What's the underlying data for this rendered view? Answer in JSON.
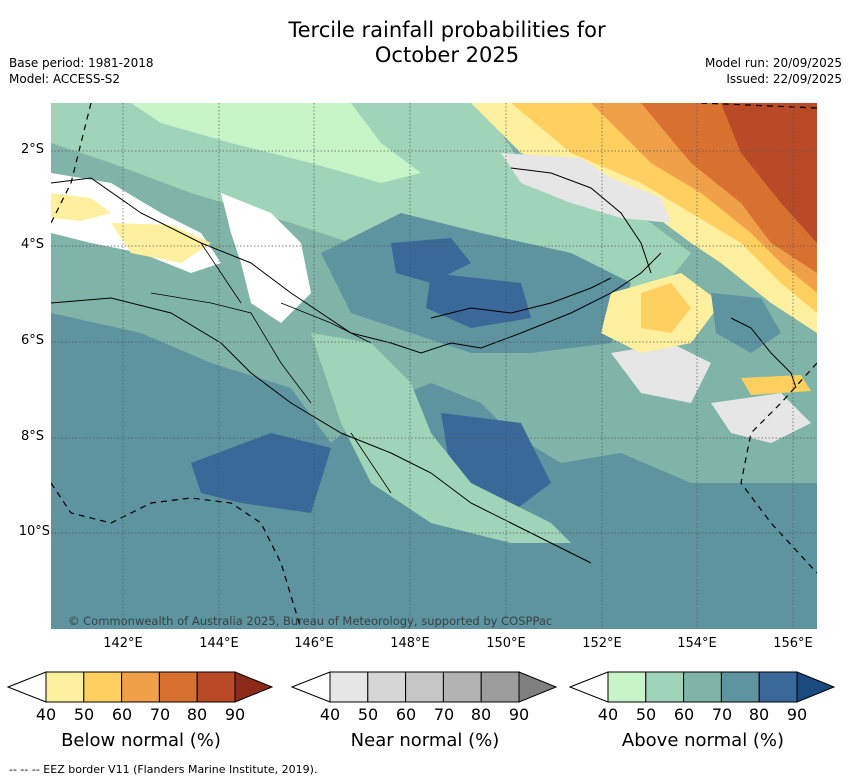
{
  "title_line1": "Tercile rainfall probabilities for",
  "title_line2": "October 2025",
  "meta": {
    "base_period": "Base period: 1981-2018",
    "model": "Model: ACCESS-S2",
    "model_run": "Model run: 20/09/2025",
    "issued": "Issued: 22/09/2025"
  },
  "map": {
    "lon_labels": [
      "142°E",
      "144°E",
      "146°E",
      "148°E",
      "150°E",
      "152°E",
      "154°E",
      "156°E"
    ],
    "lat_labels": [
      "2°S",
      "4°S",
      "6°S",
      "8°S",
      "10°S"
    ],
    "copyright": "© Commonwealth of Australia 2025, Bureau of Meteorology, supported by COSPPac"
  },
  "legend": {
    "below": {
      "title": "Below normal (%)",
      "ticks": [
        "40",
        "50",
        "60",
        "70",
        "80",
        "90"
      ],
      "colors": [
        "#ffffff",
        "#fff0a0",
        "#ffd060",
        "#f0a048",
        "#d87030",
        "#b84a28",
        "#8c2a18"
      ]
    },
    "near": {
      "title": "Near normal (%)",
      "ticks": [
        "40",
        "50",
        "60",
        "70",
        "80",
        "90"
      ],
      "colors": [
        "#ffffff",
        "#e6e6e6",
        "#d6d6d6",
        "#c6c6c6",
        "#b3b3b3",
        "#9c9c9c",
        "#808080"
      ]
    },
    "above": {
      "title": "Above normal (%)",
      "ticks": [
        "40",
        "50",
        "60",
        "70",
        "80",
        "90"
      ],
      "colors": [
        "#ffffff",
        "#c8f5c8",
        "#a0d4b8",
        "#80b4a8",
        "#5e93a0",
        "#3a6898",
        "#1a4a80"
      ]
    }
  },
  "footnote": "-- -- -- EEZ border V11 (Flanders Marine Institute, 2019)."
}
